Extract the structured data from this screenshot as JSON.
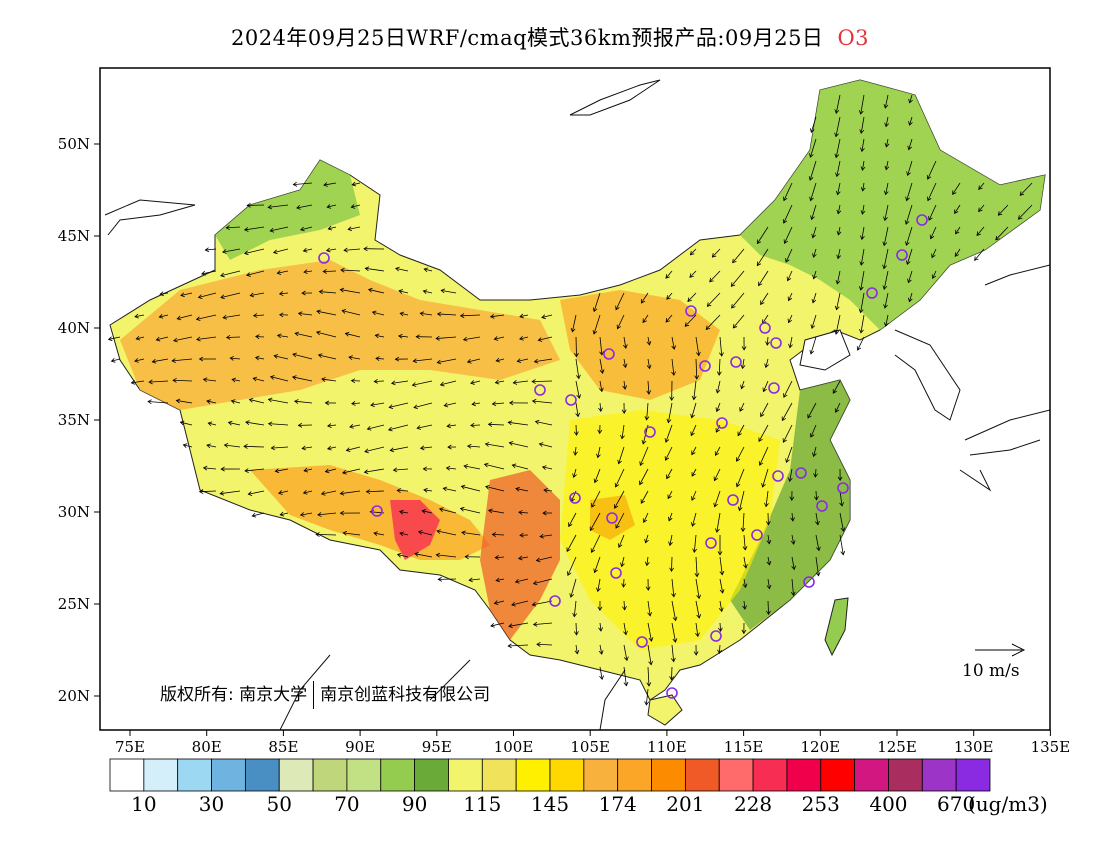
{
  "title": {
    "main": "2024年09月25日WRF/cmaq模式36km预报产品:09月25日",
    "pollutant": "O3",
    "pollutant_color": "#e8323a"
  },
  "axes": {
    "lon_labels": [
      "75E",
      "80E",
      "85E",
      "90E",
      "95E",
      "100E",
      "105E",
      "110E",
      "115E",
      "120E",
      "125E",
      "130E",
      "135E"
    ],
    "lat_labels": [
      "50N",
      "45N",
      "40N",
      "35N",
      "30N",
      "25N",
      "20N"
    ]
  },
  "copyright": {
    "prefix": "版权所有:",
    "org1": "南京大学",
    "org2": "南京创蓝科技有限公司"
  },
  "vector_reference": "10 m/s",
  "legend": {
    "colors": [
      "#ffffff",
      "#d4eefa",
      "#9dd8f3",
      "#6fb3e0",
      "#4a8fc4",
      "#dde9b6",
      "#bfd67a",
      "#c2e084",
      "#93cc4e",
      "#6aaa38",
      "#f2f46c",
      "#f0e25a",
      "#fff000",
      "#ffd800",
      "#f8b13c",
      "#fba626",
      "#fd8b00",
      "#f05a26",
      "#ff6a6a",
      "#f82d53",
      "#f0004a",
      "#fe0000",
      "#d21780",
      "#a92d5e",
      "#9d34c8",
      "#8a2be2"
    ],
    "labels": [
      "10",
      "30",
      "50",
      "70",
      "90",
      "115",
      "145",
      "174",
      "201",
      "228",
      "253",
      "400",
      "670"
    ],
    "unit": "(ug/m3)"
  },
  "site_marker_color": "#8a2be2"
}
